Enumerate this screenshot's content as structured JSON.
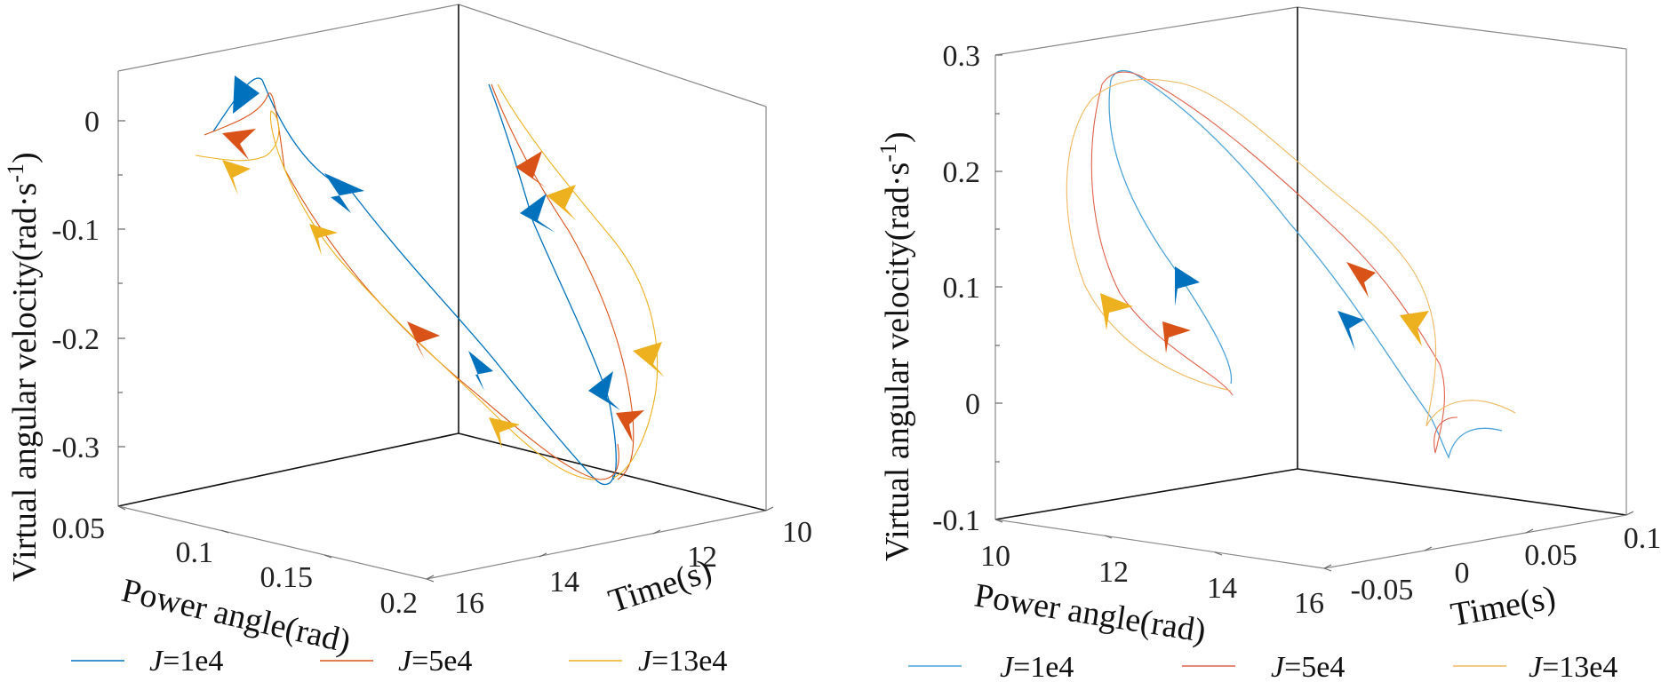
{
  "chart_data": [
    {
      "type": "line-3d",
      "title": "",
      "xlabel": "Power angle(rad)",
      "ylabel": "Time(s)",
      "zlabel": "Virtual angular velocity(rad·s",
      "zlabel_sup": "-1",
      "zlabel_end": ")",
      "x_ticks": [
        "0.05",
        "0.1",
        "0.15",
        "0.2"
      ],
      "y_ticks": [
        "10",
        "12",
        "14",
        "16"
      ],
      "z_ticks": [
        "0",
        "-0.1",
        "-0.2",
        "-0.3"
      ],
      "xlim": [
        0.05,
        0.2
      ],
      "ylim": [
        10,
        16
      ],
      "zlim": [
        -0.35,
        0.05
      ],
      "series": [
        {
          "name": "J=1e4",
          "color": "#0072BD"
        },
        {
          "name": "J=5e4",
          "color": "#D95319"
        },
        {
          "name": "J=13e4",
          "color": "#EDB120"
        }
      ]
    },
    {
      "type": "line-3d",
      "title": "",
      "xlabel": "Power angle(rad)",
      "ylabel": "Time(s)",
      "zlabel": "Virtual angular velocity(rad·s",
      "zlabel_sup": "-1",
      "zlabel_end": ")",
      "x_ticks": [
        "10",
        "12",
        "14",
        "16"
      ],
      "y_ticks": [
        "-0.05",
        "0",
        "0.05",
        "0.1"
      ],
      "z_ticks": [
        "0.3",
        "0.2",
        "0.1",
        "0",
        "-0.1"
      ],
      "xlim": [
        10,
        16
      ],
      "ylim": [
        -0.1,
        0.1
      ],
      "zlim": [
        -0.1,
        0.3
      ],
      "series": [
        {
          "name": "J=1e4",
          "color": "#4DA3D9"
        },
        {
          "name": "J=5e4",
          "color": "#E0604A"
        },
        {
          "name": "J=13e4",
          "color": "#F0B860"
        }
      ]
    }
  ],
  "legend": [
    [
      {
        "prefix": "J",
        "suffix": "=1e4",
        "color": "#0072BD"
      },
      {
        "prefix": "J",
        "suffix": "=5e4",
        "color": "#D95319"
      },
      {
        "prefix": "J",
        "suffix": "=13e4",
        "color": "#EDB120"
      }
    ],
    [
      {
        "prefix": "J",
        "suffix": "=1e4",
        "color": "#4DA3D9"
      },
      {
        "prefix": "J",
        "suffix": "=5e4",
        "color": "#E0604A"
      },
      {
        "prefix": "J",
        "suffix": "=13e4",
        "color": "#F0B860"
      }
    ]
  ]
}
